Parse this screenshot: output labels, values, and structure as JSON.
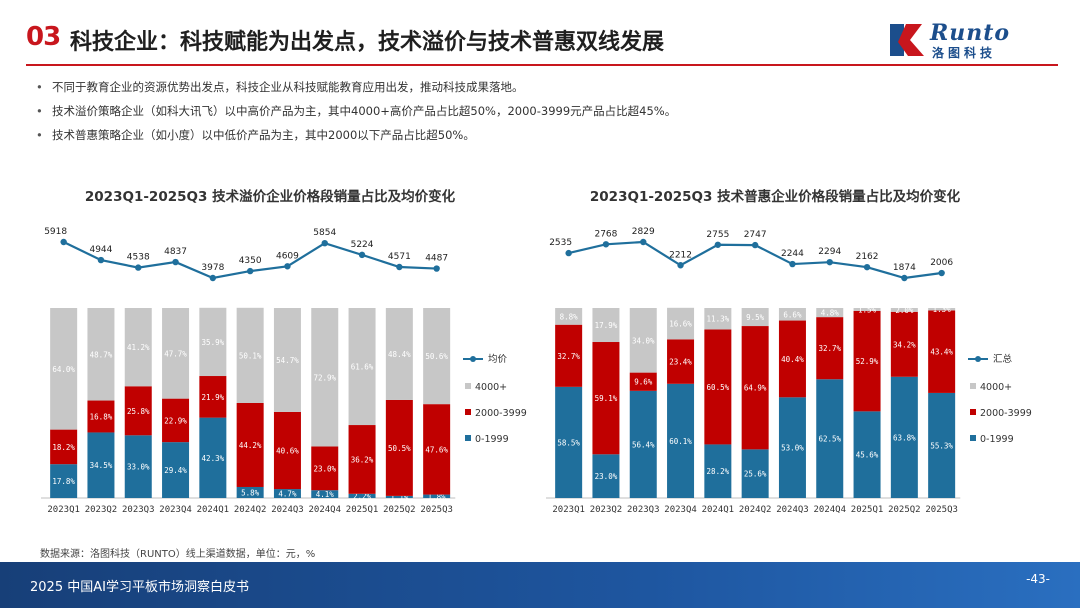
{
  "header": {
    "section_number": "03",
    "title": "科技企业：科技赋能为出发点，技术溢价与技术普惠双线发展",
    "logo_text_en": "Runto",
    "logo_text_cn": "洛图科技"
  },
  "bullets": [
    "不同于教育企业的资源优势出发点，科技企业从科技赋能教育应用出发，推动科技成果落地。",
    "技术溢价策略企业（如科大讯飞）以中高价产品为主，其中4000+高价产品占比超50%，2000-3999元产品占比超45%。",
    "技术普惠策略企业（如小度）以中低价产品为主，其中2000以下产品占比超50%。"
  ],
  "colors": {
    "brand_red": "#c8161d",
    "seg_low": "#1f6f9c",
    "seg_mid": "#c00000",
    "seg_high": "#c7c7c7",
    "line": "#1f6f9c"
  },
  "chart_data": [
    {
      "type": "bar",
      "stacked": true,
      "title": "2023Q1-2025Q3 技术溢价企业价格段销量占比及均价变化",
      "categories": [
        "2023Q1",
        "2023Q2",
        "2023Q3",
        "2023Q4",
        "2024Q1",
        "2024Q2",
        "2024Q3",
        "2024Q4",
        "2025Q1",
        "2025Q2",
        "2025Q3"
      ],
      "series": [
        {
          "name": "0-1999",
          "values": [
            17.8,
            34.5,
            33.0,
            29.4,
            42.3,
            5.8,
            4.7,
            4.1,
            2.2,
            1.1,
            1.8
          ]
        },
        {
          "name": "2000-3999",
          "values": [
            18.2,
            16.8,
            25.8,
            22.9,
            21.9,
            44.2,
            40.6,
            23.0,
            36.2,
            50.5,
            47.6
          ]
        },
        {
          "name": "4000+",
          "values": [
            64.0,
            48.7,
            41.2,
            47.7,
            35.9,
            50.1,
            54.7,
            72.9,
            61.6,
            48.4,
            50.6
          ]
        }
      ],
      "line": {
        "name": "均价",
        "values": [
          5918,
          4944,
          4538,
          4837,
          3978,
          4350,
          4609,
          5854,
          5224,
          4571,
          4487
        ]
      },
      "legend": [
        "均价",
        "4000+",
        "2000-3999",
        "0-1999"
      ],
      "ylim": [
        0,
        100
      ]
    },
    {
      "type": "bar",
      "stacked": true,
      "title": "2023Q1-2025Q3 技术普惠企业价格段销量占比及均价变化",
      "categories": [
        "2023Q1",
        "2023Q2",
        "2023Q3",
        "2023Q4",
        "2024Q1",
        "2024Q2",
        "2024Q3",
        "2024Q4",
        "2025Q1",
        "2025Q2",
        "2025Q3"
      ],
      "series": [
        {
          "name": "0-1999",
          "values": [
            58.5,
            23.0,
            56.4,
            60.1,
            28.2,
            25.6,
            53.0,
            62.5,
            45.6,
            63.8,
            55.3
          ]
        },
        {
          "name": "2000-3999",
          "values": [
            32.7,
            59.1,
            9.6,
            23.4,
            60.5,
            64.9,
            40.4,
            32.7,
            52.9,
            34.2,
            43.4
          ]
        },
        {
          "name": "4000+",
          "values": [
            8.8,
            17.9,
            34.0,
            16.6,
            11.3,
            9.5,
            6.6,
            4.8,
            1.5,
            2.0,
            1.3
          ]
        }
      ],
      "line": {
        "name": "汇总",
        "values": [
          2535,
          2768,
          2829,
          2212,
          2755,
          2747,
          2244,
          2294,
          2162,
          1874,
          2006
        ]
      },
      "legend": [
        "汇总",
        "4000+",
        "2000-3999",
        "0-1999"
      ],
      "ylim": [
        0,
        100
      ]
    }
  ],
  "source": "数据来源：洛图科技（RUNTO）线上渠道数据，单位：元，%",
  "footer": {
    "title": "2025 中国AI学习平板市场洞察白皮书",
    "page": "-43-"
  }
}
